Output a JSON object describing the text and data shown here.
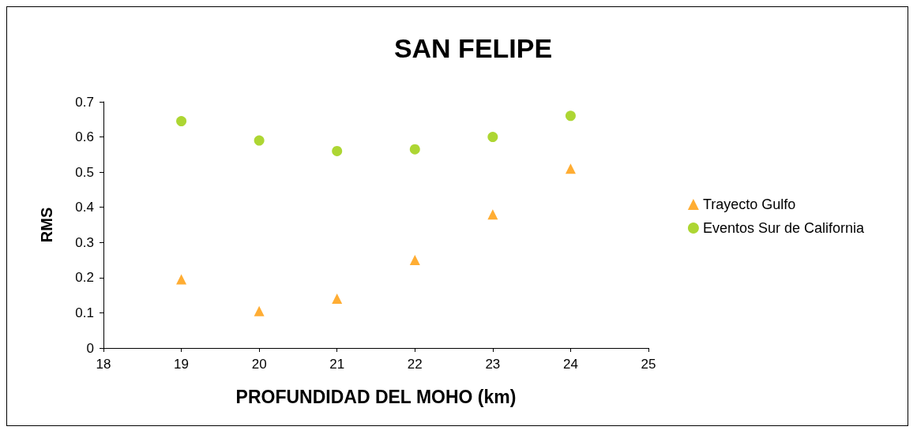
{
  "chart_data": {
    "type": "scatter",
    "title": "SAN FELIPE",
    "xlabel": "PROFUNDIDAD DEL MOHO (km)",
    "ylabel": "RMS",
    "xlim": [
      18,
      25
    ],
    "xticks": [
      18,
      19,
      20,
      21,
      22,
      23,
      24,
      25
    ],
    "ylim": [
      0,
      0.7
    ],
    "yticks": [
      0,
      0.1,
      0.2,
      0.3,
      0.4,
      0.5,
      0.6,
      0.7
    ],
    "grid": false,
    "legend": "right",
    "series": [
      {
        "name": "Trayecto Gulfo",
        "color": "#ff9900",
        "marker": "triangle",
        "x": [
          19,
          20,
          21,
          22,
          23,
          24
        ],
        "values": [
          0.195,
          0.105,
          0.14,
          0.25,
          0.38,
          0.51
        ]
      },
      {
        "name": "Eventos Sur de California",
        "color": "#99cc00",
        "marker": "circle",
        "x": [
          19,
          20,
          21,
          22,
          23,
          24
        ],
        "values": [
          0.645,
          0.59,
          0.56,
          0.565,
          0.6,
          0.66
        ]
      }
    ]
  }
}
